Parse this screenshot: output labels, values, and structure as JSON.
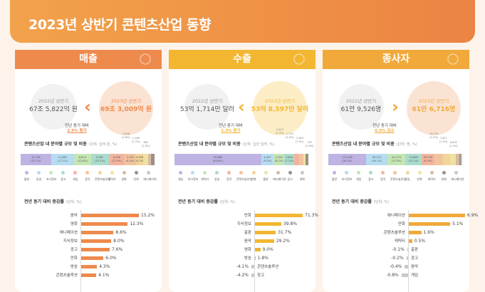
{
  "title": "2023년 상반기 콘텐츠산업 동향",
  "panels": [
    {
      "key": "sales",
      "title": "매출",
      "color": "#ee8a4c",
      "light": "#fbe3d3",
      "prev_label": "2022년 상반기",
      "prev_value": "67조 5,822억 원",
      "cur_label": "2023년 상반기",
      "cur_value": "69조 3,009억 원",
      "yoy_label": "전년 동기 대비",
      "yoy_value": "2.5% 증가",
      "direction": "‹",
      "section1_title": "콘텐츠산업 내 분야별 규모 및 비중",
      "section1_unit": "(단위: 십억 원, %)",
      "section2_title": "전년 동기 대비 증감률",
      "section2_unit": "(단위: %)",
      "chart_data": {
        "type": "bar",
        "composition": [
          {
            "label": "15,726",
            "share": "(22.7%)",
            "weight": 22.7,
            "color": "#bfb3e3"
          },
          {
            "label": "11,865",
            "share": "(17.1%)",
            "weight": 17.1,
            "color": "#b6dcf0"
          },
          {
            "label": "8,874",
            "share": "(12.8%)",
            "weight": 12.8,
            "color": "#c5e6b4"
          },
          {
            "label": "9,067",
            "share": "(13.1%)",
            "weight": 13.1,
            "color": "#aadccd"
          },
          {
            "label": "8,338",
            "share": "(12.0%)",
            "weight": 12.0,
            "color": "#f3b49d"
          },
          {
            "label": "5,753",
            "share": "(8.3%)",
            "weight": 8.3,
            "color": "#f2c49d"
          },
          {
            "label": "3,956",
            "share": "(5.7%)",
            "weight": 5.7,
            "color": "#f2d598"
          },
          {
            "label": "",
            "share": "",
            "weight": 3.6,
            "color": "#eee2a0"
          },
          {
            "label": "",
            "share": "",
            "weight": 2.3,
            "color": "#d9b9a3"
          },
          {
            "label": "",
            "share": "",
            "weight": 2.4,
            "color": "#9a8f87"
          }
        ],
        "callouts": [
          {
            "label": "1,908",
            "share": "(2.8%)"
          },
          {
            "label": "1,168",
            "share": "(1.7%)"
          },
          {
            "label": "681",
            "share": "(1.0%)"
          }
        ],
        "legend": [
          "출판",
          "방송",
          "지식정보",
          "광고",
          "게임",
          "음악",
          "콘텐츠솔루션",
          "캐릭터",
          "영화",
          "만화",
          "애니메이션"
        ],
        "legend_colors": [
          "#bfb3e3",
          "#b6dcf0",
          "#c5e6b4",
          "#aadccd",
          "#f3b49d",
          "#f2c49d",
          "#f2d598",
          "#eee2a0",
          "#d9b9a3",
          "#9a8f87",
          "#c8c8c8"
        ],
        "growth_rows": [
          {
            "label": "음악",
            "value": 15.2,
            "text": "15.2%"
          },
          {
            "label": "영화",
            "value": 12.3,
            "text": "12.3%"
          },
          {
            "label": "애니메이션",
            "value": 8.6,
            "text": "8.6%"
          },
          {
            "label": "지식정보",
            "value": 8.0,
            "text": "8.0%"
          },
          {
            "label": "광고",
            "value": 7.6,
            "text": "7.6%"
          },
          {
            "label": "만화",
            "value": 6.0,
            "text": "6.0%"
          },
          {
            "label": "방송",
            "value": 4.3,
            "text": "4.3%"
          },
          {
            "label": "콘텐츠솔루션",
            "value": 4.1,
            "text": "4.1%"
          }
        ]
      }
    },
    {
      "key": "export",
      "title": "수출",
      "color": "#f2b631",
      "light": "#fcedc6",
      "prev_label": "2022년 상반기",
      "prev_value": "53억 1,714만 달러",
      "cur_label": "2023년 상반기",
      "cur_value": "53억 8,597만 달러",
      "yoy_label": "전년 동기 대비",
      "yoy_value": "1.3% 증가",
      "direction": "‹",
      "section1_title": "콘텐츠산업 내 분야별 규모 및 비중",
      "section1_unit": "(단위: 십만 달러, %)",
      "section2_title": "전년 동기 대비 증감률",
      "section2_unit": "(단위: %)",
      "chart_data": {
        "type": "bar",
        "composition": [
          {
            "label": "34,880",
            "share": "(64.8%)",
            "weight": 64.8,
            "color": "#bfb3e3"
          },
          {
            "label": "4,947",
            "share": "(9.2%)",
            "weight": 9.2,
            "color": "#b6dcf0"
          },
          {
            "label": "4,340",
            "share": "(8.1%)",
            "weight": 8.1,
            "color": "#c5e6b4"
          },
          {
            "label": "3,806",
            "share": "(7.1%)",
            "weight": 7.1,
            "color": "#aadccd"
          },
          {
            "label": "",
            "share": "",
            "weight": 3.7,
            "color": "#f3b49d"
          },
          {
            "label": "",
            "share": "",
            "weight": 3.2,
            "color": "#f2c49d"
          },
          {
            "label": "",
            "share": "",
            "weight": 2.0,
            "color": "#eee2a0"
          },
          {
            "label": "",
            "share": "",
            "weight": 1.9,
            "color": "#9a8f87"
          }
        ],
        "callouts": [
          {
            "label": "2,013",
            "share": "(3.7%)"
          },
          {
            "label": "1,710",
            "share": "(3.2%)"
          },
          {
            "label": "1,063",
            "share": "(2.0%)"
          },
          {
            "label": "237",
            "share": "(0.4%)"
          }
        ],
        "legend": [
          "게임",
          "지식정보",
          "캐릭터",
          "방송",
          "음악",
          "콘텐츠솔루션",
          "만화",
          "출판",
          "애니메이션",
          "광고",
          "영화"
        ],
        "legend_colors": [
          "#bfb3e3",
          "#b6dcf0",
          "#c5e6b4",
          "#aadccd",
          "#f3b49d",
          "#f2c49d",
          "#f2d598",
          "#eee2a0",
          "#d9b9a3",
          "#9a8f87",
          "#c8c8c8"
        ],
        "growth_rows": [
          {
            "label": "만화",
            "value": 71.3,
            "text": "71.3%"
          },
          {
            "label": "지식정보",
            "value": 39.8,
            "text": "39.8%"
          },
          {
            "label": "출판",
            "value": 31.7,
            "text": "31.7%"
          },
          {
            "label": "음악",
            "value": 29.2,
            "text": "29.2%"
          },
          {
            "label": "영화",
            "value": 9.0,
            "text": "9.0%"
          },
          {
            "label": "방송",
            "value": 1.8,
            "text": "1.8%"
          },
          {
            "label": "콘텐츠솔루션",
            "value": -4.1,
            "text": "-4.1%"
          },
          {
            "label": "광고",
            "value": -4.2,
            "text": "-4.2%"
          }
        ]
      }
    },
    {
      "key": "employees",
      "title": "종사자",
      "color": "#f0a93a",
      "light": "#fbe3d3",
      "prev_label": "2022년 상반기",
      "prev_value": "61만 9,526명",
      "cur_label": "2023년 상반기",
      "cur_value": "61만 6,716명",
      "yoy_label": "전년 동기 대비",
      "yoy_value": "0.5% 감소",
      "direction": "›",
      "section1_title": "콘텐츠산업 내 분야별 규모 및 비중",
      "section1_unit": "(단위: 명, %)",
      "section2_title": "전년 동기 대비 증감률",
      "section2_unit": "(단위: %)",
      "chart_data": {
        "type": "bar",
        "composition": [
          {
            "label": "173,308",
            "share": "(28.1%)",
            "weight": 28.1,
            "color": "#bfb3e3"
          },
          {
            "label": "99,223",
            "share": "(16.1%)",
            "weight": 16.1,
            "color": "#b6dcf0"
          },
          {
            "label": "82,279",
            "share": "(13.3%)",
            "weight": 13.3,
            "color": "#c5e6b4"
          },
          {
            "label": "74,606",
            "share": "(12.1%)",
            "weight": 12.1,
            "color": "#aadccd"
          },
          {
            "label": "58,793",
            "share": "(9.5%)",
            "weight": 9.5,
            "color": "#f3b49d"
          },
          {
            "label": "",
            "share": "",
            "weight": 6.6,
            "color": "#f2c49d"
          },
          {
            "label": "",
            "share": "",
            "weight": 5.2,
            "color": "#f2d598"
          },
          {
            "label": "",
            "share": "",
            "weight": 4.6,
            "color": "#eee2a0"
          },
          {
            "label": "",
            "share": "",
            "weight": 2.2,
            "color": "#d9b9a3"
          },
          {
            "label": "",
            "share": "",
            "weight": 1.2,
            "color": "#9a8f87"
          },
          {
            "label": "",
            "share": "",
            "weight": 1.1,
            "color": "#c8c8c8"
          }
        ],
        "callouts": [
          {
            "label": "13,779",
            "share": "(2.2%)"
          },
          {
            "label": "7,611",
            "share": "(1.2%)"
          },
          {
            "label": "6,892",
            "share": "(1.1%)"
          }
        ],
        "legend": [
          "출판",
          "지식정보",
          "게임",
          "광고",
          "음악",
          "콘텐츠솔루션",
          "방송",
          "만화",
          "캐릭터",
          "영화",
          "애니메이션"
        ],
        "legend_colors": [
          "#bfb3e3",
          "#b6dcf0",
          "#c5e6b4",
          "#aadccd",
          "#f3b49d",
          "#f2c49d",
          "#f2d598",
          "#eee2a0",
          "#d9b9a3",
          "#9a8f87",
          "#c8c8c8"
        ],
        "growth_rows": [
          {
            "label": "애니메이션",
            "value": 6.9,
            "text": "6.9%"
          },
          {
            "label": "만화",
            "value": 5.1,
            "text": "5.1%"
          },
          {
            "label": "콘텐츠솔루션",
            "value": 1.6,
            "text": "1.6%"
          },
          {
            "label": "캐릭터",
            "value": 0.5,
            "text": "0.5%"
          },
          {
            "label": "출판",
            "value": -0.1,
            "text": "-0.1%"
          },
          {
            "label": "광고",
            "value": -0.2,
            "text": "-0.2%"
          },
          {
            "label": "음악",
            "value": -0.4,
            "text": "-0.4%"
          },
          {
            "label": "게임",
            "value": -0.8,
            "text": "-0.8%"
          }
        ]
      }
    }
  ]
}
